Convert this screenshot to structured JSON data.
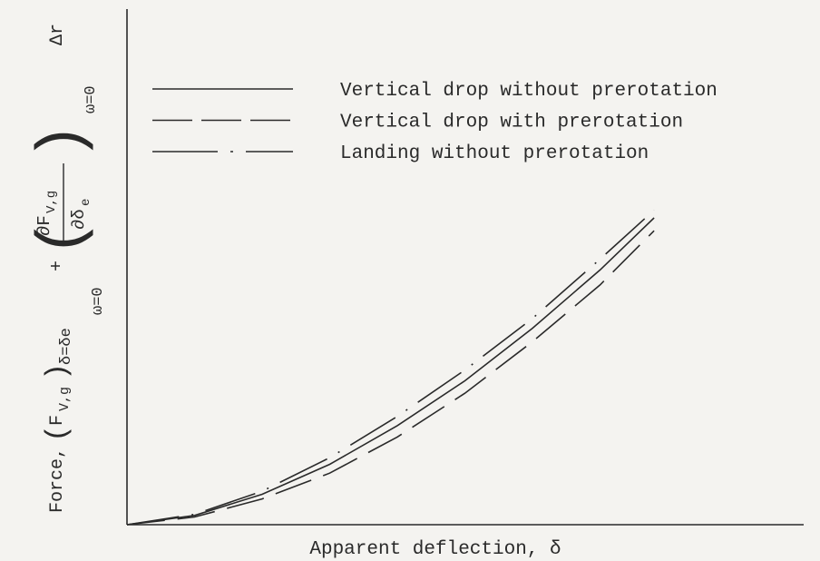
{
  "chart_data": {
    "type": "line",
    "x_label": "Apparent deflection,  δ",
    "y_label": {
      "lead": "Force,",
      "force": "F",
      "force_sub": "V,g",
      "force_cond": "δ=δe",
      "force_under": "ω=0",
      "plus": "+",
      "num": "∂F",
      "num_sub": "V,g",
      "den": "∂δ",
      "den_sub": "e",
      "deriv_cond": "ω=0",
      "tail": "Δr"
    },
    "x": [
      0,
      0.1,
      0.2,
      0.3,
      0.4,
      0.5,
      0.6,
      0.7,
      0.78
    ],
    "xlim": [
      0,
      1
    ],
    "ylim": [
      0,
      1
    ],
    "legend": "upper-left",
    "series": [
      {
        "name": "Vertical drop without prerotation",
        "color": "#2a2a2a",
        "dash": "solid",
        "values": [
          0,
          0.018,
          0.059,
          0.117,
          0.192,
          0.279,
          0.381,
          0.494,
          0.595
        ]
      },
      {
        "name": "Vertical drop with prerotation",
        "color": "#2a2a2a",
        "dash": "dashed",
        "values": [
          0,
          0.015,
          0.05,
          0.1,
          0.17,
          0.255,
          0.355,
          0.465,
          0.57
        ]
      },
      {
        "name": "Landing without prerotation",
        "color": "#2a2a2a",
        "dash": "dashdot",
        "values": [
          0,
          0.02,
          0.065,
          0.13,
          0.21,
          0.3,
          0.4,
          0.515,
          0.61
        ]
      }
    ]
  }
}
